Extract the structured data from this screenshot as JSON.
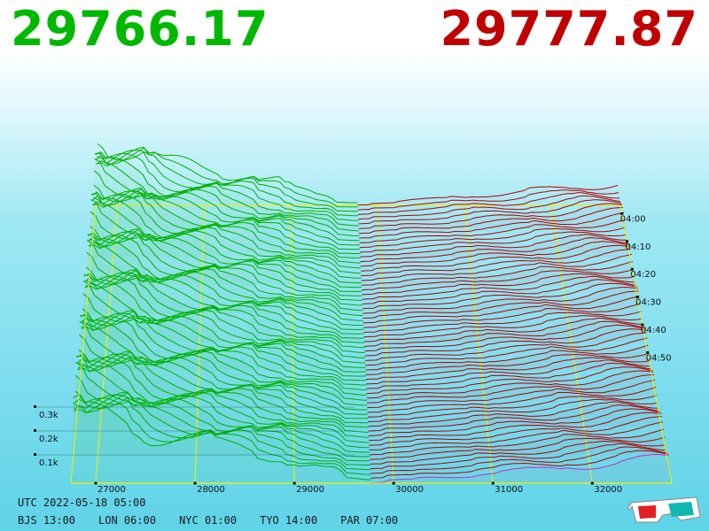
{
  "prices": {
    "bid": "29766.17",
    "ask": "29777.87",
    "bid_color": "#00b800",
    "ask_color": "#c00000"
  },
  "chart_data": {
    "type": "3d-depth",
    "price_ticks": [
      "27000",
      "28000",
      "29000",
      "30000",
      "31000",
      "32000"
    ],
    "price_values": [
      27000,
      28000,
      29000,
      30000,
      31000,
      32000
    ],
    "price_range": [
      26750,
      32800
    ],
    "time_ticks": [
      "04:00",
      "04:10",
      "04:20",
      "04:30",
      "04:40",
      "04:50"
    ],
    "volume_ticks": [
      "0.1k",
      "0.2k",
      "0.3k"
    ],
    "volume_values": [
      100,
      200,
      300
    ],
    "mid_price": 29770,
    "snapshots": 60,
    "bid_color": "#00b000",
    "ask_color": "#b00000",
    "grid_color": "#f0f000"
  },
  "footer": {
    "utc": "UTC 2022-05-18 05:00",
    "zones": [
      "BJS 13:00",
      "LON 06:00",
      "NYC 01:00",
      "TYO 14:00",
      "PAR 07:00"
    ]
  },
  "icons": {
    "glasses": "3d-glasses-icon"
  }
}
